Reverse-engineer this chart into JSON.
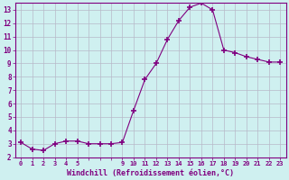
{
  "x": [
    0,
    1,
    2,
    3,
    4,
    5,
    6,
    7,
    8,
    9,
    10,
    11,
    12,
    13,
    14,
    15,
    16,
    17,
    18,
    19,
    20,
    21,
    22,
    23
  ],
  "y": [
    3.1,
    2.6,
    2.5,
    3.0,
    3.2,
    3.2,
    3.0,
    3.0,
    3.0,
    3.1,
    5.5,
    7.8,
    9.0,
    10.8,
    12.2,
    13.2,
    13.5,
    13.0,
    10.0,
    9.8,
    9.5,
    9.3,
    9.1,
    9.1
  ],
  "line_color": "#800080",
  "marker": "+",
  "marker_size": 4,
  "marker_lw": 1.2,
  "bg_color": "#cff0f0",
  "grid_color": "#b8b8c8",
  "xlabel": "Windchill (Refroidissement éolien,°C)",
  "xlabel_color": "#800080",
  "tick_color": "#800080",
  "spine_color": "#800080",
  "ylim": [
    2,
    13.5
  ],
  "xlim": [
    -0.5,
    23.5
  ],
  "yticks": [
    2,
    3,
    4,
    5,
    6,
    7,
    8,
    9,
    10,
    11,
    12,
    13
  ],
  "xticks": [
    0,
    1,
    2,
    3,
    4,
    5,
    6,
    7,
    8,
    9,
    10,
    11,
    12,
    13,
    14,
    15,
    16,
    17,
    18,
    19,
    20,
    21,
    22,
    23
  ],
  "xtick_labels": [
    "0",
    "1",
    "2",
    "3",
    "4",
    "5",
    "",
    "",
    "",
    "9",
    "10",
    "11",
    "12",
    "13",
    "14",
    "15",
    "16",
    "17",
    "18",
    "19",
    "20",
    "21",
    "22",
    "23"
  ]
}
